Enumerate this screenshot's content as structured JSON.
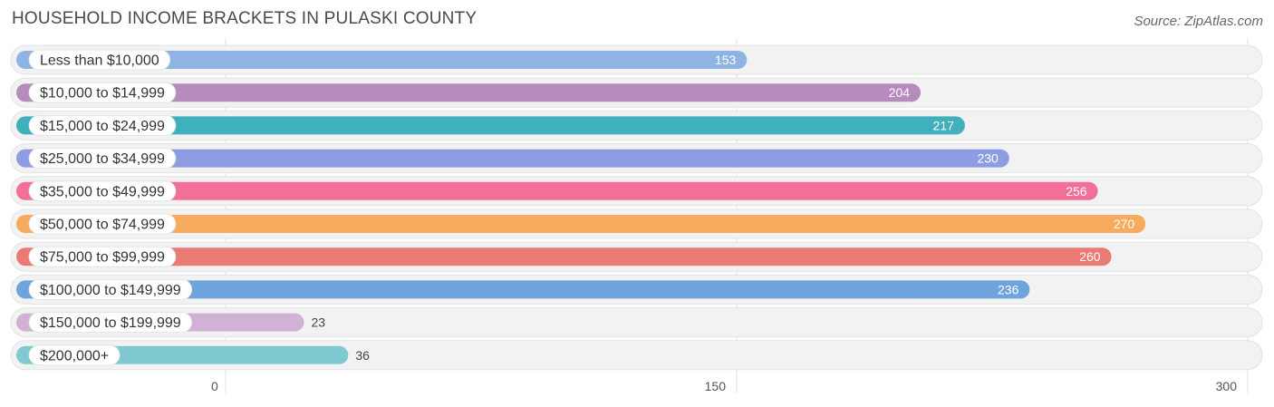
{
  "chart_data": {
    "type": "bar",
    "orientation": "horizontal",
    "title": "HOUSEHOLD INCOME BRACKETS IN PULASKI COUNTY",
    "source": "Source: ZipAtlas.com",
    "categories": [
      "Less than $10,000",
      "$10,000 to $14,999",
      "$15,000 to $24,999",
      "$25,000 to $34,999",
      "$35,000 to $49,999",
      "$50,000 to $74,999",
      "$75,000 to $99,999",
      "$100,000 to $149,999",
      "$150,000 to $199,999",
      "$200,000+"
    ],
    "values": [
      153,
      204,
      217,
      230,
      256,
      270,
      260,
      236,
      23,
      36
    ],
    "value_labels": [
      "153",
      "204",
      "217",
      "230",
      "256",
      "270",
      "260",
      "236",
      "23",
      "36"
    ],
    "colors": [
      "#8fb4e3",
      "#b78bbd",
      "#3fb0bc",
      "#8d9de2",
      "#f26f97",
      "#f7ab5f",
      "#ea7a74",
      "#6fa3de",
      "#d0b2d4",
      "#7fcad0"
    ],
    "xlim": [
      0,
      300
    ],
    "xticks": [
      0,
      150,
      300
    ],
    "xtick_labels": [
      "0",
      "150",
      "300"
    ],
    "grid": true,
    "legend": "none"
  }
}
